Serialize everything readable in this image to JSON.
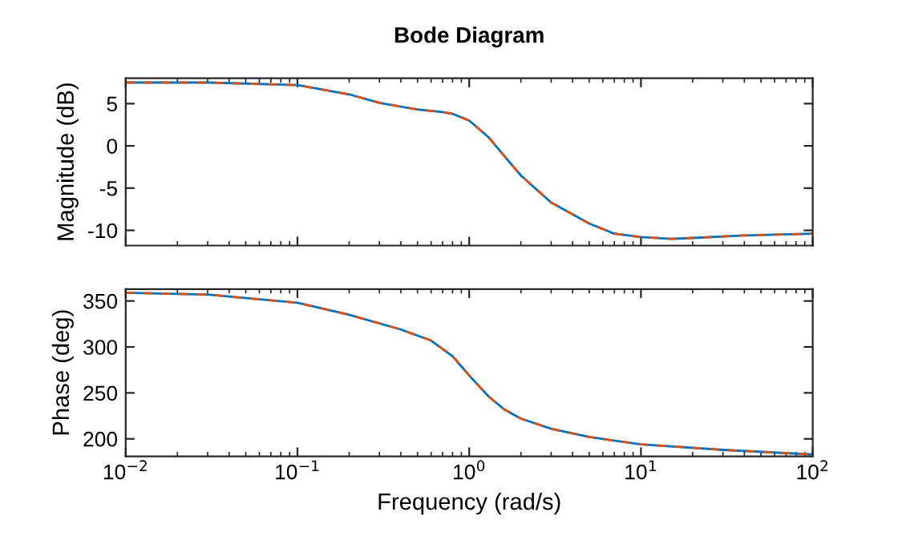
{
  "chart_data": [
    {
      "type": "line",
      "title": "Bode Diagram",
      "ylabel": "Magnitude (dB)",
      "log": "x",
      "tick_labels": "y",
      "grid": false,
      "legend": false,
      "x": [
        0.01,
        0.03,
        0.1,
        0.2,
        0.3,
        0.5,
        0.7,
        0.8,
        1.0,
        1.3,
        1.6,
        2,
        3,
        5,
        7,
        10,
        15,
        20,
        40,
        100
      ],
      "series": [
        {
          "color": "#0072bd",
          "values": [
            7.5,
            7.5,
            7.2,
            6.1,
            5.1,
            4.3,
            4.0,
            3.8,
            3.0,
            1.0,
            -1.2,
            -3.5,
            -6.7,
            -9.2,
            -10.4,
            -10.8,
            -11.0,
            -10.9,
            -10.6,
            -10.4
          ]
        },
        {
          "color": "#d95319",
          "line_style": "dashed",
          "values": [
            7.5,
            7.5,
            7.2,
            6.1,
            5.1,
            4.3,
            4.0,
            3.8,
            3.0,
            1.0,
            -1.2,
            -3.5,
            -6.7,
            -9.2,
            -10.4,
            -10.8,
            -11.0,
            -10.9,
            -10.6,
            -10.4
          ]
        }
      ],
      "xlim": [
        0.01,
        100
      ],
      "xticks": [
        {
          "value": 0.01,
          "label": null
        },
        {
          "value": 0.1,
          "label": null
        },
        {
          "value": 1,
          "label": null
        },
        {
          "value": 10,
          "label": null
        },
        {
          "value": 100,
          "label": null
        }
      ],
      "ylim": [
        -11.8,
        8
      ],
      "yticks": [
        -10,
        -5,
        0,
        5
      ]
    },
    {
      "type": "line",
      "xlabel": "Frequency (rad/s)",
      "ylabel": "Phase (deg)",
      "log": "x",
      "grid": false,
      "legend": false,
      "x": [
        0.01,
        0.03,
        0.1,
        0.2,
        0.4,
        0.6,
        0.8,
        1.0,
        1.3,
        1.6,
        2,
        3,
        5,
        10,
        30,
        100
      ],
      "series": [
        {
          "color": "#0072bd",
          "values": [
            359,
            357,
            348,
            335,
            319,
            307,
            290,
            269,
            246,
            232,
            222,
            211,
            202,
            194,
            188,
            183
          ]
        },
        {
          "color": "#d95319",
          "line_style": "dashed",
          "values": [
            359,
            357,
            348,
            335,
            319,
            307,
            290,
            269,
            246,
            232,
            222,
            211,
            202,
            194,
            188,
            183
          ]
        }
      ],
      "xlim": [
        0.01,
        100
      ],
      "xticks": [
        {
          "value": 0.01,
          "label": "10$^{−2}$"
        },
        {
          "value": 0.1,
          "label": "10$^{−1}$"
        },
        {
          "value": 1,
          "label": "10$^{0}$"
        },
        {
          "value": 10,
          "label": "10$^{1}$"
        },
        {
          "value": 100,
          "label": "10$^{2}$"
        }
      ],
      "ylim": [
        181,
        363
      ],
      "yticks": [
        200,
        250,
        300,
        350
      ]
    }
  ]
}
